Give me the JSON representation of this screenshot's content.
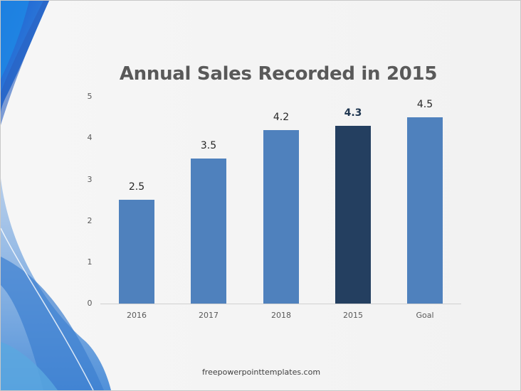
{
  "slide": {
    "footer": "freepowerpointtemplates.com"
  },
  "colors": {
    "bar": "#4f81bd",
    "highlight_bar": "#243f60",
    "title": "#595959",
    "axis_text": "#595959"
  },
  "chart_data": {
    "type": "bar",
    "title": "Annual Sales Recorded in 2015",
    "categories": [
      "2016",
      "2017",
      "2018",
      "2015",
      "Goal"
    ],
    "values": [
      2.5,
      3.5,
      4.2,
      4.3,
      4.5
    ],
    "value_labels": [
      "2.5",
      "3.5",
      "4.2",
      "4.3",
      "4.5"
    ],
    "highlight_index": 3,
    "xlabel": "",
    "ylabel": "",
    "ylim": [
      0,
      5
    ],
    "yticks": [
      "0",
      "1",
      "2",
      "3",
      "4",
      "5"
    ],
    "grid": false,
    "legend": null
  }
}
